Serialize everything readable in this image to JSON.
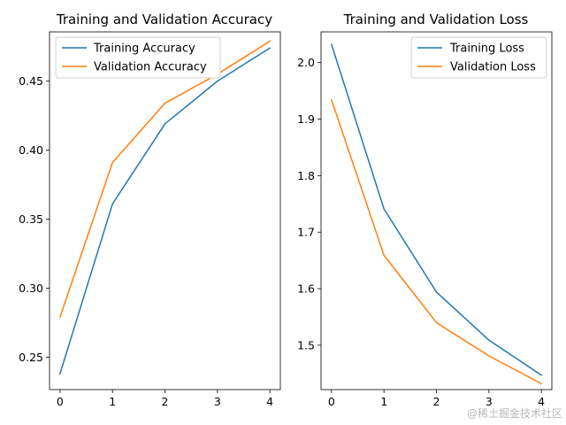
{
  "chart_data": [
    {
      "type": "line",
      "title": "Training and Validation Accuracy",
      "xlabel": "",
      "ylabel": "",
      "x": [
        0,
        1,
        2,
        3,
        4
      ],
      "xticks": [
        "0",
        "1",
        "2",
        "3",
        "4"
      ],
      "yticks": [
        "0.25",
        "0.30",
        "0.35",
        "0.40",
        "0.45"
      ],
      "xlim": [
        -0.2,
        4.2
      ],
      "ylim": [
        0.2265,
        0.4857
      ],
      "legend_position": "upper-left",
      "grid": false,
      "series": [
        {
          "name": "Training Accuracy",
          "color": "#1f77b4",
          "values": [
            0.238,
            0.361,
            0.419,
            0.45,
            0.474
          ]
        },
        {
          "name": "Validation Accuracy",
          "color": "#ff7f0e",
          "values": [
            0.279,
            0.391,
            0.434,
            0.455,
            0.479
          ]
        }
      ]
    },
    {
      "type": "line",
      "title": "Training and Validation Loss",
      "xlabel": "",
      "ylabel": "",
      "x": [
        0,
        1,
        2,
        3,
        4
      ],
      "xticks": [
        "0",
        "1",
        "2",
        "3",
        "4"
      ],
      "yticks": [
        "1.5",
        "1.6",
        "1.7",
        "1.8",
        "1.9",
        "2.0"
      ],
      "xlim": [
        -0.2,
        4.2
      ],
      "ylim": [
        1.4215,
        2.0543
      ],
      "legend_position": "upper-right",
      "grid": false,
      "series": [
        {
          "name": "Training Loss",
          "color": "#1f77b4",
          "values": [
            2.032,
            1.741,
            1.594,
            1.509,
            1.447
          ]
        },
        {
          "name": "Validation Loss",
          "color": "#ff7f0e",
          "values": [
            1.934,
            1.659,
            1.54,
            1.481,
            1.432
          ]
        }
      ]
    }
  ],
  "watermark": "@稀土掘金技术社区"
}
